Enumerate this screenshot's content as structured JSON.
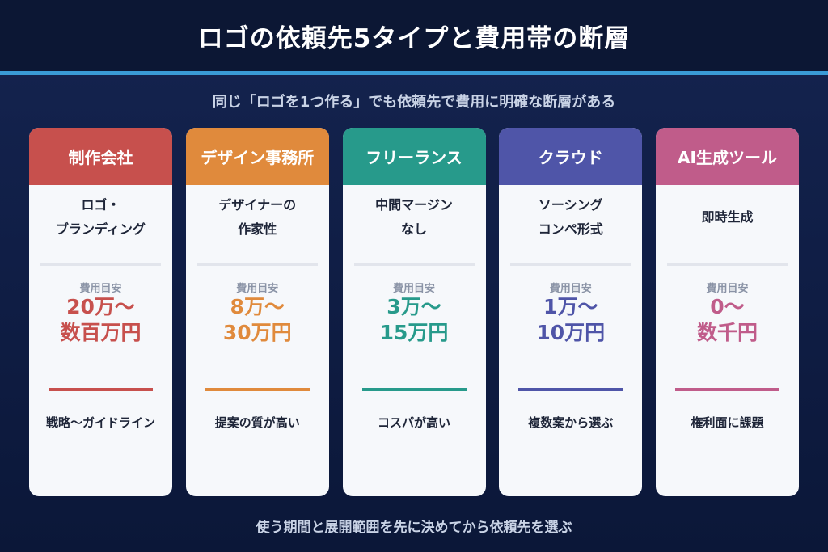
{
  "title": "ロゴの依頼先5タイプと費用帯の断層",
  "subtitle": "同じ「ロゴを1つ作る」でも依頼先で費用に明確な断層がある",
  "footer": "使う期間と展開範囲を先に決めてから依頼先を選ぶ",
  "cost_label": "費用目安",
  "colors": {
    "agency": "#c7504d",
    "design_office": "#e08a3c",
    "freelance": "#279a8b",
    "crowd": "#4f55a8",
    "ai": "#c05c8a"
  },
  "cards": [
    {
      "header": "制作会社",
      "desc_lines": [
        "ロゴ・",
        "ブランディング"
      ],
      "cost_lines": [
        "20万〜",
        "数百万円"
      ],
      "note": "戦略〜ガイドライン",
      "color": "#c7504d"
    },
    {
      "header": "デザイン事務所",
      "desc_lines": [
        "デザイナーの",
        "作家性"
      ],
      "cost_lines": [
        "8万〜",
        "30万円"
      ],
      "note": "提案の質が高い",
      "color": "#e08a3c"
    },
    {
      "header": "フリーランス",
      "desc_lines": [
        "中間マージン",
        "なし"
      ],
      "cost_lines": [
        "3万〜",
        "15万円"
      ],
      "note": "コスパが高い",
      "color": "#279a8b"
    },
    {
      "header": "クラウド",
      "desc_lines": [
        "ソーシング",
        "コンペ形式"
      ],
      "cost_lines": [
        "1万〜",
        "10万円"
      ],
      "note": "複数案から選ぶ",
      "color": "#4f55a8"
    },
    {
      "header": "AI生成ツール",
      "desc_lines": [
        "即時生成",
        ""
      ],
      "cost_lines": [
        "0〜",
        "数千円"
      ],
      "note": "権利面に課題",
      "color": "#c05c8a"
    }
  ]
}
